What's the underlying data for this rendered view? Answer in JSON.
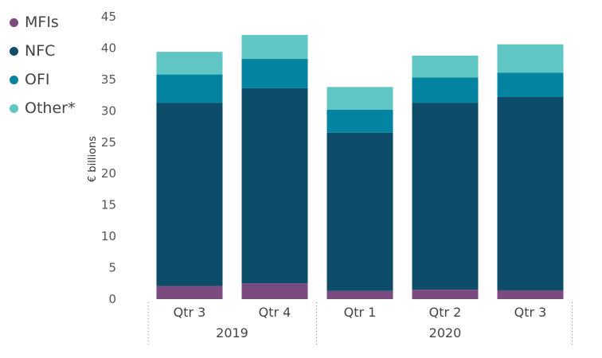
{
  "chart_data": {
    "type": "bar",
    "stacked": true,
    "ylabel": "€ billions",
    "ylim": [
      0,
      45
    ],
    "yticks": [
      0,
      5,
      10,
      15,
      20,
      25,
      30,
      35,
      40,
      45
    ],
    "categories": [
      "Qtr 3",
      "Qtr 4",
      "Qtr 1",
      "Qtr 2",
      "Qtr 3"
    ],
    "year_groups": [
      {
        "label": "2019",
        "span": 2
      },
      {
        "label": "2020",
        "span": 3
      }
    ],
    "series": [
      {
        "name": "MFIs",
        "color": "#7b4a7f",
        "values": [
          2.1,
          2.5,
          1.3,
          1.5,
          1.4
        ]
      },
      {
        "name": "NFC",
        "color": "#0d4d69",
        "values": [
          29.2,
          31.1,
          25.2,
          29.8,
          30.8
        ]
      },
      {
        "name": "OFI",
        "color": "#0584a2",
        "values": [
          4.5,
          4.7,
          3.7,
          4.0,
          3.9
        ]
      },
      {
        "name": "Other*",
        "color": "#5fc6c4",
        "values": [
          3.6,
          3.8,
          3.6,
          3.5,
          4.5
        ]
      }
    ]
  }
}
